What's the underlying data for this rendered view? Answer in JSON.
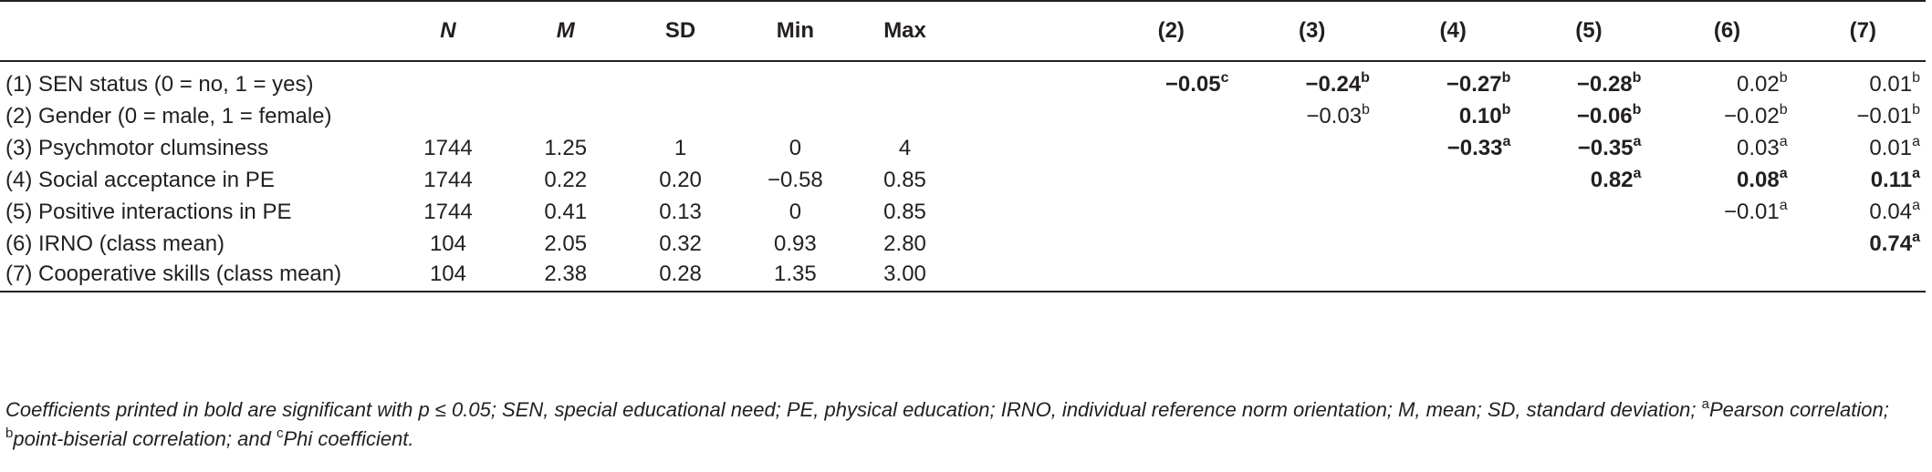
{
  "header": [
    "",
    "N",
    "M",
    "SD",
    "Min",
    "Max",
    "(2)",
    "(3)",
    "(4)",
    "(5)",
    "(6)",
    "(7)"
  ],
  "rows": [
    {
      "label": "(1) SEN status (0 = no, 1 = yes)",
      "stats": [
        "",
        "",
        "",
        "",
        ""
      ],
      "corr": [
        {
          "v": "−0.05",
          "s": "c",
          "b": true
        },
        {
          "v": "−0.24",
          "s": "b",
          "b": true
        },
        {
          "v": "−0.27",
          "s": "b",
          "b": true
        },
        {
          "v": "−0.28",
          "s": "b",
          "b": true
        },
        {
          "v": "0.02",
          "s": "b",
          "b": false
        },
        {
          "v": "0.01",
          "s": "b",
          "b": false
        }
      ]
    },
    {
      "label": "(2) Gender (0 = male, 1 = female)",
      "stats": [
        "",
        "",
        "",
        "",
        ""
      ],
      "corr": [
        {
          "v": "",
          "s": "",
          "b": false
        },
        {
          "v": "−0.03",
          "s": "b",
          "b": false
        },
        {
          "v": "0.10",
          "s": "b",
          "b": true
        },
        {
          "v": "−0.06",
          "s": "b",
          "b": true
        },
        {
          "v": "−0.02",
          "s": "b",
          "b": false
        },
        {
          "v": "−0.01",
          "s": "b",
          "b": false
        }
      ]
    },
    {
      "label": "(3) Psychmotor clumsiness",
      "stats": [
        "1744",
        "1.25",
        "1",
        "0",
        "4"
      ],
      "corr": [
        {
          "v": "",
          "s": "",
          "b": false
        },
        {
          "v": "",
          "s": "",
          "b": false
        },
        {
          "v": "−0.33",
          "s": "a",
          "b": true
        },
        {
          "v": "−0.35",
          "s": "a",
          "b": true
        },
        {
          "v": "0.03",
          "s": "a",
          "b": false
        },
        {
          "v": "0.01",
          "s": "a",
          "b": false
        }
      ]
    },
    {
      "label": "(4) Social acceptance in PE",
      "stats": [
        "1744",
        "0.22",
        "0.20",
        "−0.58",
        "0.85"
      ],
      "corr": [
        {
          "v": "",
          "s": "",
          "b": false
        },
        {
          "v": "",
          "s": "",
          "b": false
        },
        {
          "v": "",
          "s": "",
          "b": false
        },
        {
          "v": "0.82",
          "s": "a",
          "b": true
        },
        {
          "v": "0.08",
          "s": "a",
          "b": true
        },
        {
          "v": "0.11",
          "s": "a",
          "b": true
        }
      ]
    },
    {
      "label": "(5) Positive interactions in PE",
      "stats": [
        "1744",
        "0.41",
        "0.13",
        "0",
        "0.85"
      ],
      "corr": [
        {
          "v": "",
          "s": "",
          "b": false
        },
        {
          "v": "",
          "s": "",
          "b": false
        },
        {
          "v": "",
          "s": "",
          "b": false
        },
        {
          "v": "",
          "s": "",
          "b": false
        },
        {
          "v": "−0.01",
          "s": "a",
          "b": false
        },
        {
          "v": "0.04",
          "s": "a",
          "b": false
        }
      ]
    },
    {
      "label": "(6) IRNO (class mean)",
      "stats": [
        "104",
        "2.05",
        "0.32",
        "0.93",
        "2.80"
      ],
      "corr": [
        {
          "v": "",
          "s": "",
          "b": false
        },
        {
          "v": "",
          "s": "",
          "b": false
        },
        {
          "v": "",
          "s": "",
          "b": false
        },
        {
          "v": "",
          "s": "",
          "b": false
        },
        {
          "v": "",
          "s": "",
          "b": false
        },
        {
          "v": "0.74",
          "s": "a",
          "b": true
        }
      ]
    },
    {
      "label": "(7) Cooperative skills (class mean)",
      "stats": [
        "104",
        "2.38",
        "0.28",
        "1.35",
        "3.00"
      ],
      "corr": [
        {
          "v": "",
          "s": "",
          "b": false
        },
        {
          "v": "",
          "s": "",
          "b": false
        },
        {
          "v": "",
          "s": "",
          "b": false
        },
        {
          "v": "",
          "s": "",
          "b": false
        },
        {
          "v": "",
          "s": "",
          "b": false
        },
        {
          "v": "",
          "s": "",
          "b": false
        }
      ]
    }
  ],
  "note": [
    {
      "sup": "",
      "text": "Coefficients printed in bold are significant with p ≤ 0.05; SEN, special educational need; PE, physical education; IRNO, individual reference norm orientation; M, mean; SD, standard deviation; "
    },
    {
      "sup": "a",
      "text": "Pearson correlation; "
    },
    {
      "sup": "b",
      "text": "point-biserial correlation; and "
    },
    {
      "sup": "c",
      "text": "Phi coefficient."
    }
  ]
}
